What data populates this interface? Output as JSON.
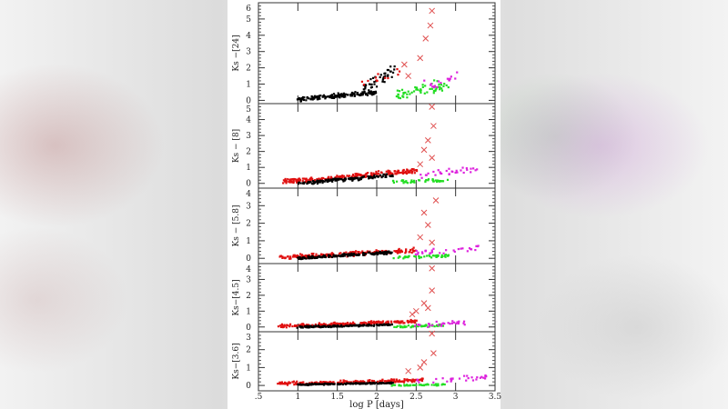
{
  "chart_data": {
    "type": "scatter",
    "xlabel": "log P [days]",
    "xlim": [
      0.5,
      3.5
    ],
    "xticks": [
      ".5",
      "1",
      "1.5",
      "2",
      "2.5",
      "3",
      "3.5"
    ],
    "xtick_values": [
      0.5,
      1,
      1.5,
      2,
      2.5,
      3,
      3.5
    ],
    "grid": false,
    "colors": {
      "black": "#000000",
      "red": "#e01010",
      "green": "#22dd22",
      "magenta": "#dd22dd",
      "cross": "#e05050"
    },
    "panels": [
      {
        "ylabel": "Ks −[24]",
        "ylim": [
          -0.2,
          6
        ],
        "yticks": [
          0,
          1,
          2,
          3,
          4,
          5,
          6
        ],
        "bulk": [
          {
            "series": "black",
            "x": [
              1.0,
              2.0
            ],
            "y": [
              0.05,
              0.5
            ],
            "spread": 0.18,
            "n": 160
          },
          {
            "series": "black",
            "x": [
              1.8,
              2.25
            ],
            "y": [
              0.6,
              2.0
            ],
            "spread": 0.6,
            "n": 45
          },
          {
            "series": "red",
            "x": [
              1.8,
              2.3
            ],
            "y": [
              1.0,
              1.8
            ],
            "spread": 0.4,
            "n": 12
          },
          {
            "series": "green",
            "x": [
              2.2,
              2.9
            ],
            "y": [
              0.3,
              0.9
            ],
            "spread": 0.5,
            "n": 55
          },
          {
            "series": "magenta",
            "x": [
              2.6,
              3.1
            ],
            "y": [
              0.8,
              1.5
            ],
            "spread": 0.5,
            "n": 18
          }
        ],
        "crosses": [
          [
            2.7,
            5.5
          ],
          [
            2.68,
            4.6
          ],
          [
            2.62,
            3.8
          ],
          [
            2.55,
            2.6
          ],
          [
            2.4,
            1.5
          ],
          [
            2.35,
            2.2
          ]
        ]
      },
      {
        "ylabel": "Ks − [8]",
        "ylim": [
          -0.3,
          5
        ],
        "yticks": [
          0,
          1,
          2,
          3,
          4,
          5
        ],
        "bulk": [
          {
            "series": "red",
            "x": [
              0.8,
              2.5
            ],
            "y": [
              0.1,
              0.8
            ],
            "spread": 0.22,
            "n": 200
          },
          {
            "series": "black",
            "x": [
              1.0,
              2.2
            ],
            "y": [
              0.0,
              0.5
            ],
            "spread": 0.15,
            "n": 160
          },
          {
            "series": "green",
            "x": [
              2.2,
              2.9
            ],
            "y": [
              0.1,
              0.2
            ],
            "spread": 0.15,
            "n": 45
          },
          {
            "series": "magenta",
            "x": [
              2.5,
              3.3
            ],
            "y": [
              0.5,
              0.9
            ],
            "spread": 0.35,
            "n": 30
          }
        ],
        "crosses": [
          [
            2.7,
            4.8
          ],
          [
            2.72,
            3.6
          ],
          [
            2.65,
            2.7
          ],
          [
            2.6,
            2.1
          ],
          [
            2.7,
            1.6
          ],
          [
            2.55,
            1.2
          ]
        ]
      },
      {
        "ylabel": "Ks − [5.8]",
        "ylim": [
          -0.3,
          4
        ],
        "yticks": [
          0,
          1,
          2,
          3,
          4
        ],
        "bulk": [
          {
            "series": "red",
            "x": [
              0.75,
              2.5
            ],
            "y": [
              0.05,
              0.45
            ],
            "spread": 0.18,
            "n": 200
          },
          {
            "series": "black",
            "x": [
              1.0,
              2.2
            ],
            "y": [
              0.0,
              0.35
            ],
            "spread": 0.12,
            "n": 160
          },
          {
            "series": "green",
            "x": [
              2.2,
              2.9
            ],
            "y": [
              0.05,
              0.15
            ],
            "spread": 0.12,
            "n": 45
          },
          {
            "series": "magenta",
            "x": [
              2.5,
              3.3
            ],
            "y": [
              0.3,
              0.6
            ],
            "spread": 0.3,
            "n": 30
          }
        ],
        "crosses": [
          [
            2.75,
            3.3
          ],
          [
            2.6,
            2.6
          ],
          [
            2.65,
            1.9
          ],
          [
            2.55,
            1.2
          ],
          [
            2.7,
            0.9
          ]
        ]
      },
      {
        "ylabel": "Ks−[4.5]",
        "ylim": [
          -0.3,
          4
        ],
        "yticks": [
          0,
          1,
          2,
          3,
          4
        ],
        "bulk": [
          {
            "series": "red",
            "x": [
              0.75,
              2.5
            ],
            "y": [
              0.05,
              0.35
            ],
            "spread": 0.15,
            "n": 200
          },
          {
            "series": "black",
            "x": [
              1.0,
              2.2
            ],
            "y": [
              0.0,
              0.15
            ],
            "spread": 0.08,
            "n": 160
          },
          {
            "series": "green",
            "x": [
              2.2,
              2.9
            ],
            "y": [
              0.0,
              0.1
            ],
            "spread": 0.1,
            "n": 45
          },
          {
            "series": "magenta",
            "x": [
              2.5,
              3.2
            ],
            "y": [
              0.1,
              0.3
            ],
            "spread": 0.2,
            "n": 30
          }
        ],
        "crosses": [
          [
            2.7,
            3.7
          ],
          [
            2.7,
            2.3
          ],
          [
            2.6,
            1.5
          ],
          [
            2.65,
            1.2
          ],
          [
            2.5,
            1.0
          ],
          [
            2.45,
            0.8
          ]
        ]
      },
      {
        "ylabel": "Ks−[3.6]",
        "ylim": [
          -0.3,
          3
        ],
        "yticks": [
          0,
          1,
          2,
          3
        ],
        "bulk": [
          {
            "series": "red",
            "x": [
              0.75,
              2.6
            ],
            "y": [
              0.1,
              0.3
            ],
            "spread": 0.12,
            "n": 200
          },
          {
            "series": "black",
            "x": [
              1.0,
              2.2
            ],
            "y": [
              0.05,
              0.15
            ],
            "spread": 0.06,
            "n": 160
          },
          {
            "series": "green",
            "x": [
              2.2,
              2.9
            ],
            "y": [
              0.0,
              0.05
            ],
            "spread": 0.06,
            "n": 45
          },
          {
            "series": "magenta",
            "x": [
              2.5,
              3.4
            ],
            "y": [
              0.2,
              0.5
            ],
            "spread": 0.2,
            "n": 30
          }
        ],
        "crosses": [
          [
            2.7,
            2.9
          ],
          [
            2.72,
            1.8
          ],
          [
            2.6,
            1.3
          ],
          [
            2.55,
            1.0
          ],
          [
            2.4,
            0.8
          ]
        ]
      }
    ]
  }
}
